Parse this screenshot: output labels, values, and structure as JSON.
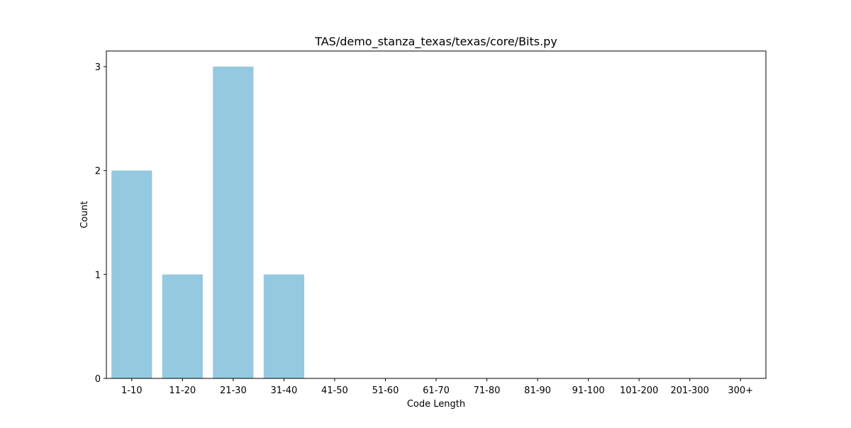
{
  "chart_data": {
    "type": "bar",
    "title": "TAS/demo_stanza_texas/texas/core/Bits.py",
    "xlabel": "Code Length",
    "ylabel": "Count",
    "categories": [
      "1-10",
      "11-20",
      "21-30",
      "31-40",
      "41-50",
      "51-60",
      "61-70",
      "71-80",
      "81-90",
      "91-100",
      "101-200",
      "201-300",
      "300+"
    ],
    "values": [
      2,
      1,
      3,
      1,
      0,
      0,
      0,
      0,
      0,
      0,
      0,
      0,
      0
    ],
    "ylim": [
      0,
      3.15
    ],
    "yticks": [
      0,
      1,
      2,
      3
    ],
    "bar_color": "#95c9df",
    "grid": false,
    "legend": "none"
  }
}
